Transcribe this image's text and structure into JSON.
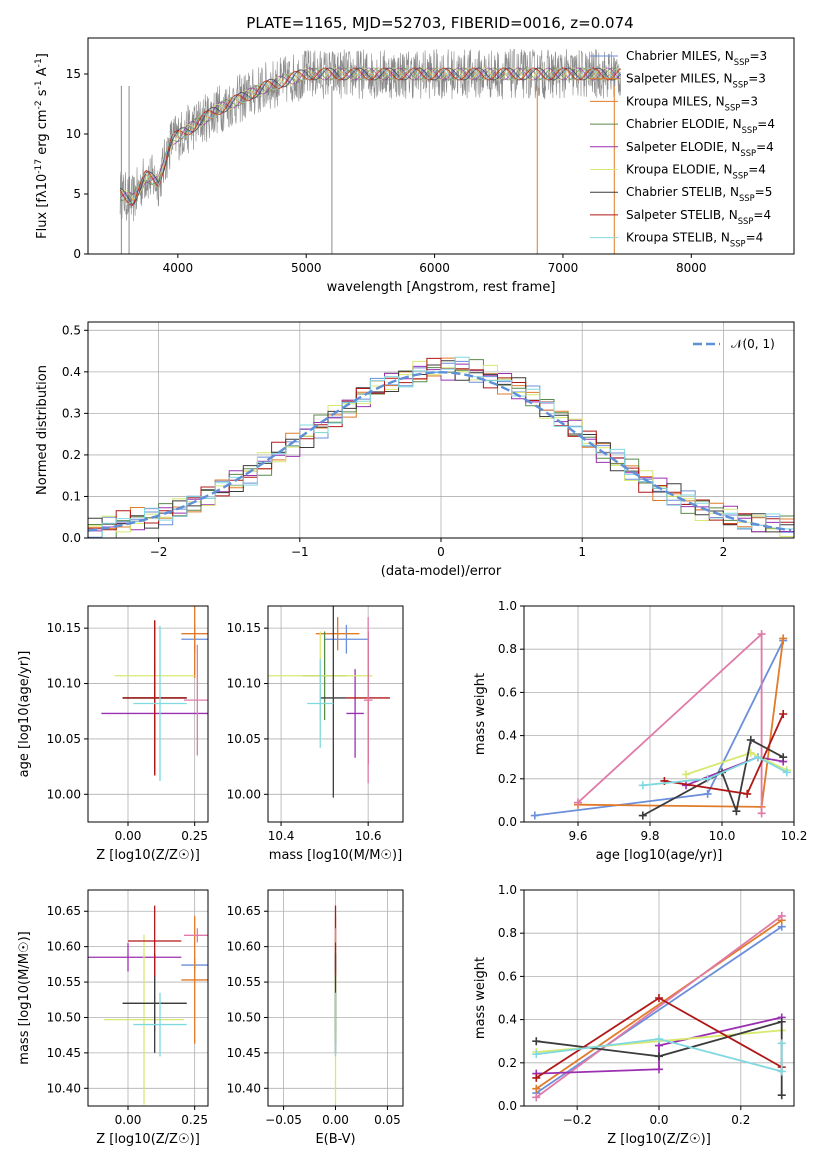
{
  "figure": {
    "title": "PLATE=1165, MJD=52703, FIBERID=0016, z=0.074"
  },
  "colors": {
    "blue": "#6b8fdb",
    "orange": "#e07b29",
    "green": "#5a8a4a",
    "purple": "#9b30b0",
    "yellow": "#d8e870",
    "black": "#3c3c3c",
    "red": "#b01818",
    "cyan": "#80d8e0",
    "pink": "#e07aa8",
    "gray": "#8a8a8a"
  },
  "chart_data": [
    {
      "id": "spectrum",
      "type": "line",
      "xlabel": "wavelength [Angstrom, rest frame]",
      "ylabel": "Flux [f_λ10^-17 erg cm^-2 s^-1 A^-1]",
      "xlim": [
        3300,
        8800
      ],
      "ylim": [
        0,
        18
      ],
      "xticks": [
        4000,
        5000,
        6000,
        7000,
        8000
      ],
      "yticks": [
        0,
        5,
        10,
        15
      ],
      "grid": false,
      "legend_position": "right",
      "observed_color": "#8a8a8a",
      "observed_approx": {
        "x": [
          3550,
          3650,
          3750,
          3850,
          3950,
          4100,
          4300,
          4500,
          4700,
          5000,
          5300,
          5600,
          6000,
          6400,
          6800,
          7200,
          7450
        ],
        "y": [
          5.0,
          4.5,
          6.5,
          6.0,
          9.5,
          10.5,
          12.0,
          13.0,
          14.0,
          15.0,
          15.0,
          15.0,
          15.0,
          15.0,
          15.0,
          15.0,
          15.0
        ]
      },
      "legend": [
        {
          "label": "Chabrier MILES, N_SSP=3",
          "color": "#6b8fdb"
        },
        {
          "label": "Salpeter MILES, N_SSP=3",
          "color": "#e07b29"
        },
        {
          "label": "Kroupa MILES, N_SSP=3",
          "color": "#e07b29"
        },
        {
          "label": "Chabrier ELODIE, N_SSP=4",
          "color": "#5a8a4a"
        },
        {
          "label": "Salpeter ELODIE, N_SSP=4",
          "color": "#9b30b0"
        },
        {
          "label": "Kroupa ELODIE, N_SSP=4",
          "color": "#d8e870"
        },
        {
          "label": "Chabrier STELIB, N_SSP=5",
          "color": "#3c3c3c"
        },
        {
          "label": "Salpeter STELIB, N_SSP=4",
          "color": "#b01818"
        },
        {
          "label": "Kroupa STELIB, N_SSP=4",
          "color": "#80d8e0"
        }
      ]
    },
    {
      "id": "residuals",
      "type": "line",
      "xlabel": "(data-model)/error",
      "ylabel": "Normed distribution",
      "xlim": [
        -2.5,
        2.5
      ],
      "ylim": [
        0,
        0.52
      ],
      "xticks": [
        -2,
        -1,
        0,
        1,
        2
      ],
      "yticks": [
        0.0,
        0.1,
        0.2,
        0.3,
        0.4,
        0.5
      ],
      "grid": true,
      "legend_position": "top-right",
      "gaussian": {
        "label": "𝒩(0, 1)",
        "color": "#5f8fd8",
        "mean": 0,
        "sigma": 1
      },
      "histogram_approx": {
        "x": [
          -2.4,
          -2.2,
          -2.0,
          -1.8,
          -1.6,
          -1.4,
          -1.2,
          -1.0,
          -0.8,
          -0.6,
          -0.4,
          -0.2,
          0.0,
          0.2,
          0.4,
          0.6,
          0.8,
          1.0,
          1.2,
          1.4,
          1.6,
          1.8,
          2.0,
          2.2,
          2.4
        ],
        "y": [
          0.025,
          0.04,
          0.055,
          0.075,
          0.11,
          0.145,
          0.19,
          0.235,
          0.28,
          0.33,
          0.37,
          0.395,
          0.41,
          0.405,
          0.385,
          0.35,
          0.3,
          0.25,
          0.195,
          0.15,
          0.11,
          0.075,
          0.055,
          0.04,
          0.028
        ]
      }
    },
    {
      "id": "age_vs_Z",
      "type": "scatter",
      "xlabel": "Z [log10(Z/Z☉)]",
      "ylabel": "age [log10(age/yr)]",
      "xlim": [
        -0.15,
        0.3
      ],
      "ylim": [
        9.975,
        10.17
      ],
      "xticks": [
        0.0,
        0.25
      ],
      "xticklabels": [
        "0.00",
        "0.25"
      ],
      "yticks": [
        10.0,
        10.05,
        10.1,
        10.15
      ],
      "yticklabels": [
        "10.00",
        "10.05",
        "10.10",
        "10.15"
      ],
      "grid": true,
      "points": [
        {
          "x": 0.25,
          "y": 10.14,
          "xerr": 0.05,
          "yerr": 0.013,
          "color": "#6b8fdb"
        },
        {
          "x": 0.25,
          "y": 10.145,
          "xerr": 0.05,
          "yerr": 0.04,
          "color": "#e07b29"
        },
        {
          "x": 0.1,
          "y": 10.087,
          "xerr": 0.12,
          "yerr": 0.03,
          "color": "#5a8a4a"
        },
        {
          "x": 0.1,
          "y": 10.073,
          "xerr": 0.2,
          "yerr": 0.05,
          "color": "#9b30b0"
        },
        {
          "x": 0.1,
          "y": 10.107,
          "xerr": 0.15,
          "yerr": 0.04,
          "color": "#d8e870"
        },
        {
          "x": 0.1,
          "y": 10.087,
          "xerr": 0.12,
          "yerr": 0.07,
          "color": "#3c3c3c"
        },
        {
          "x": 0.1,
          "y": 10.087,
          "xerr": 0.12,
          "yerr": 0.07,
          "color": "#b01818"
        },
        {
          "x": 0.12,
          "y": 10.082,
          "xerr": 0.1,
          "yerr": 0.07,
          "color": "#80d8e0"
        },
        {
          "x": 0.26,
          "y": 10.085,
          "xerr": 0.05,
          "yerr": 0.05,
          "color": "#e07aa8"
        }
      ]
    },
    {
      "id": "age_vs_mass",
      "type": "scatter",
      "xlabel": "mass [log10(M/M☉)]",
      "ylabel": "",
      "xlim": [
        10.37,
        10.68
      ],
      "ylim": [
        9.975,
        10.17
      ],
      "xticks": [
        10.4,
        10.6
      ],
      "xticklabels": [
        "10.4",
        "10.6"
      ],
      "yticks": [
        10.0,
        10.05,
        10.1,
        10.15
      ],
      "yticklabels": [
        "10.00",
        "10.05",
        "10.10",
        "10.15"
      ],
      "grid": true,
      "points": [
        {
          "x": 10.55,
          "y": 10.14,
          "xerr": 0.05,
          "yerr": 0.013,
          "color": "#6b8fdb"
        },
        {
          "x": 10.53,
          "y": 10.145,
          "xerr": 0.05,
          "yerr": 0.015,
          "color": "#e07b29"
        },
        {
          "x": 10.5,
          "y": 10.107,
          "xerr": 0.05,
          "yerr": 0.04,
          "color": "#5a8a4a"
        },
        {
          "x": 10.57,
          "y": 10.073,
          "xerr": 0.02,
          "yerr": 0.04,
          "color": "#9b30b0"
        },
        {
          "x": 10.49,
          "y": 10.107,
          "xerr": 0.12,
          "yerr": 0.04,
          "color": "#d8e870"
        },
        {
          "x": 10.52,
          "y": 10.087,
          "xerr": 0.03,
          "yerr": 0.09,
          "color": "#3c3c3c"
        },
        {
          "x": 10.6,
          "y": 10.087,
          "xerr": 0.05,
          "yerr": 0.06,
          "color": "#b01818"
        },
        {
          "x": 10.49,
          "y": 10.082,
          "xerr": 0.03,
          "yerr": 0.04,
          "color": "#80d8e0"
        },
        {
          "x": 10.6,
          "y": 10.085,
          "xerr": 0.01,
          "yerr": 0.075,
          "color": "#e07aa8"
        }
      ]
    },
    {
      "id": "weight_vs_age",
      "type": "line",
      "xlabel": "age [log10(age/yr)]",
      "ylabel": "mass weight",
      "xlim": [
        9.45,
        10.2
      ],
      "ylim": [
        0,
        1.0
      ],
      "xticks": [
        9.6,
        9.8,
        10.0,
        10.2
      ],
      "xticklabels": [
        "9.6",
        "9.8",
        "10.0",
        "10.2"
      ],
      "yticks": [
        0.0,
        0.2,
        0.4,
        0.6,
        0.8,
        1.0
      ],
      "yticklabels": [
        "0.0",
        "0.2",
        "0.4",
        "0.6",
        "0.8",
        "1.0"
      ],
      "grid": true,
      "series": [
        {
          "color": "#6b8fdb",
          "x": [
            9.48,
            9.96,
            10.17
          ],
          "y": [
            0.03,
            0.13,
            0.84
          ]
        },
        {
          "color": "#e07b29",
          "x": [
            9.6,
            10.11,
            10.17
          ],
          "y": [
            0.08,
            0.07,
            0.85
          ]
        },
        {
          "color": "#e07aa8",
          "x": [
            9.6,
            10.11,
            10.11
          ],
          "y": [
            0.09,
            0.87,
            0.04
          ]
        },
        {
          "color": "#9b30b0",
          "x": [
            9.9,
            10.1,
            10.17
          ],
          "y": [
            0.17,
            0.3,
            0.28
          ]
        },
        {
          "color": "#d8e870",
          "x": [
            9.9,
            10.08,
            10.18
          ],
          "y": [
            0.22,
            0.32,
            0.24
          ]
        },
        {
          "color": "#3c3c3c",
          "x": [
            9.78,
            10.0,
            10.04,
            10.08,
            10.17
          ],
          "y": [
            0.03,
            0.23,
            0.05,
            0.38,
            0.3
          ]
        },
        {
          "color": "#b01818",
          "x": [
            9.84,
            10.07,
            10.17
          ],
          "y": [
            0.19,
            0.13,
            0.5
          ]
        },
        {
          "color": "#80d8e0",
          "x": [
            9.78,
            9.96,
            10.1,
            10.18
          ],
          "y": [
            0.17,
            0.2,
            0.3,
            0.23
          ]
        }
      ]
    },
    {
      "id": "mass_vs_Z",
      "type": "scatter",
      "xlabel": "Z [log10(Z/Z☉)]",
      "ylabel": "mass [log10(M/M☉)]",
      "xlim": [
        -0.15,
        0.3
      ],
      "ylim": [
        10.375,
        10.68
      ],
      "xticks": [
        0.0,
        0.25
      ],
      "xticklabels": [
        "0.00",
        "0.25"
      ],
      "yticks": [
        10.4,
        10.45,
        10.5,
        10.55,
        10.6,
        10.65
      ],
      "yticklabels": [
        "10.40",
        "10.45",
        "10.50",
        "10.55",
        "10.60",
        "10.65"
      ],
      "grid": true,
      "points": [
        {
          "x": 0.25,
          "y": 10.574,
          "xerr": 0.05,
          "yerr": 0.01,
          "color": "#6b8fdb"
        },
        {
          "x": 0.25,
          "y": 10.553,
          "xerr": 0.05,
          "yerr": 0.09,
          "color": "#e07b29"
        },
        {
          "x": 0.1,
          "y": 10.52,
          "xerr": 0.12,
          "yerr": 0.04,
          "color": "#5a8a4a"
        },
        {
          "x": 0.0,
          "y": 10.585,
          "xerr": 0.2,
          "yerr": 0.02,
          "color": "#9b30b0"
        },
        {
          "x": 0.06,
          "y": 10.497,
          "xerr": 0.15,
          "yerr": 0.12,
          "color": "#d8e870"
        },
        {
          "x": 0.1,
          "y": 10.52,
          "xerr": 0.12,
          "yerr": 0.07,
          "color": "#3c3c3c"
        },
        {
          "x": 0.1,
          "y": 10.608,
          "xerr": 0.1,
          "yerr": 0.05,
          "color": "#b01818"
        },
        {
          "x": 0.12,
          "y": 10.49,
          "xerr": 0.1,
          "yerr": 0.045,
          "color": "#80d8e0"
        },
        {
          "x": 0.26,
          "y": 10.616,
          "xerr": 0.05,
          "yerr": 0.01,
          "color": "#e07aa8"
        }
      ]
    },
    {
      "id": "mass_vs_EBV",
      "type": "scatter",
      "xlabel": "E(B-V)",
      "ylabel": "",
      "xlim": [
        -0.065,
        0.065
      ],
      "ylim": [
        10.375,
        10.68
      ],
      "xticks": [
        -0.05,
        0.0,
        0.05
      ],
      "xticklabels": [
        "−0.05",
        "0.00",
        "0.05"
      ],
      "yticks": [
        10.4,
        10.45,
        10.5,
        10.55,
        10.6,
        10.65
      ],
      "yticklabels": [
        "10.40",
        "10.45",
        "10.50",
        "10.55",
        "10.60",
        "10.65"
      ],
      "grid": true,
      "points": [
        {
          "x": 0.0,
          "y": 10.574,
          "xerr": 0.0,
          "yerr": 0.01,
          "color": "#6b8fdb"
        },
        {
          "x": 0.0,
          "y": 10.553,
          "xerr": 0.0,
          "yerr": 0.09,
          "color": "#e07b29"
        },
        {
          "x": 0.0,
          "y": 10.52,
          "xerr": 0.0,
          "yerr": 0.04,
          "color": "#5a8a4a"
        },
        {
          "x": 0.0,
          "y": 10.585,
          "xerr": 0.0,
          "yerr": 0.02,
          "color": "#9b30b0"
        },
        {
          "x": 0.0,
          "y": 10.497,
          "xerr": 0.0,
          "yerr": 0.12,
          "color": "#d8e870"
        },
        {
          "x": 0.0,
          "y": 10.52,
          "xerr": 0.0,
          "yerr": 0.07,
          "color": "#3c3c3c"
        },
        {
          "x": 0.0,
          "y": 10.608,
          "xerr": 0.0,
          "yerr": 0.05,
          "color": "#b01818"
        },
        {
          "x": 0.0,
          "y": 10.49,
          "xerr": 0.0,
          "yerr": 0.045,
          "color": "#80d8e0"
        },
        {
          "x": 0.0,
          "y": 10.616,
          "xerr": 0.0,
          "yerr": 0.01,
          "color": "#e07aa8"
        }
      ]
    },
    {
      "id": "weight_vs_Z",
      "type": "line",
      "xlabel": "Z [log10(Z/Z☉)]",
      "ylabel": "mass weight",
      "xlim": [
        -0.33,
        0.33
      ],
      "ylim": [
        0,
        1.0
      ],
      "xticks": [
        -0.2,
        0.0,
        0.2
      ],
      "xticklabels": [
        "−0.2",
        "0.0",
        "0.2"
      ],
      "yticks": [
        0.0,
        0.2,
        0.4,
        0.6,
        0.8,
        1.0
      ],
      "yticklabels": [
        "0.0",
        "0.2",
        "0.4",
        "0.6",
        "0.8",
        "1.0"
      ],
      "grid": true,
      "series": [
        {
          "color": "#6b8fdb",
          "x": [
            -0.3,
            0.3
          ],
          "y": [
            0.06,
            0.83
          ]
        },
        {
          "color": "#e07b29",
          "x": [
            -0.3,
            0.3
          ],
          "y": [
            0.08,
            0.86
          ]
        },
        {
          "color": "#e07aa8",
          "x": [
            -0.3,
            0.3
          ],
          "y": [
            0.04,
            0.88
          ]
        },
        {
          "color": "#9b30b0",
          "x": [
            -0.3,
            0.0,
            0.0,
            0.3
          ],
          "y": [
            0.15,
            0.17,
            0.28,
            0.41
          ]
        },
        {
          "color": "#d8e870",
          "x": [
            -0.3,
            0.3
          ],
          "y": [
            0.25,
            0.35
          ]
        },
        {
          "color": "#3c3c3c",
          "x": [
            -0.3,
            0.0,
            0.3,
            0.3
          ],
          "y": [
            0.3,
            0.23,
            0.39,
            0.05
          ]
        },
        {
          "color": "#b01818",
          "x": [
            -0.3,
            0.0,
            0.3
          ],
          "y": [
            0.13,
            0.5,
            0.18
          ]
        },
        {
          "color": "#80d8e0",
          "x": [
            -0.3,
            0.0,
            0.3,
            0.3
          ],
          "y": [
            0.24,
            0.31,
            0.16,
            0.29
          ]
        }
      ]
    }
  ]
}
